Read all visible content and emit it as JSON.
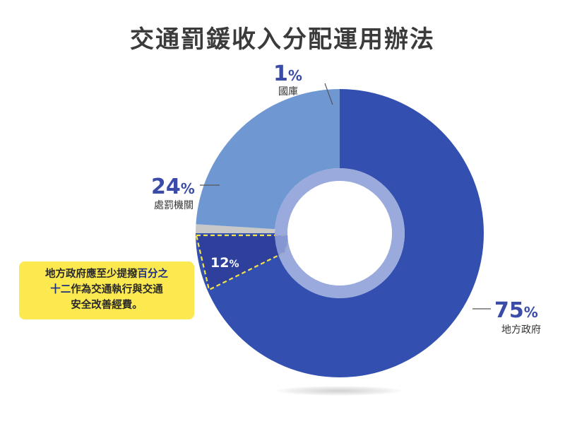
{
  "title": "交通罰鍰收入分配運用辦法",
  "chart_data": {
    "type": "pie",
    "variant": "donut",
    "slices": [
      {
        "label": "地方政府",
        "value": 75,
        "display": "75%",
        "color": "#3350b0"
      },
      {
        "label": "國庫",
        "value": 1,
        "display": "1%",
        "color": "#c8c8c8"
      },
      {
        "label": "處罰機關",
        "value": 24,
        "display": "24%",
        "color": "#6f98d3"
      }
    ],
    "sub_slice": {
      "parent": "地方政府",
      "display": "12%",
      "color": "#2e3f9c"
    },
    "inner_ring_color": "#8fa1d8"
  },
  "note": {
    "pre": "地方政府應至少提撥",
    "highlight": "百分之",
    "line2_hl": "十二",
    "line2_rest": "作為交通執行與交通",
    "line3": "安全改善經費。"
  }
}
